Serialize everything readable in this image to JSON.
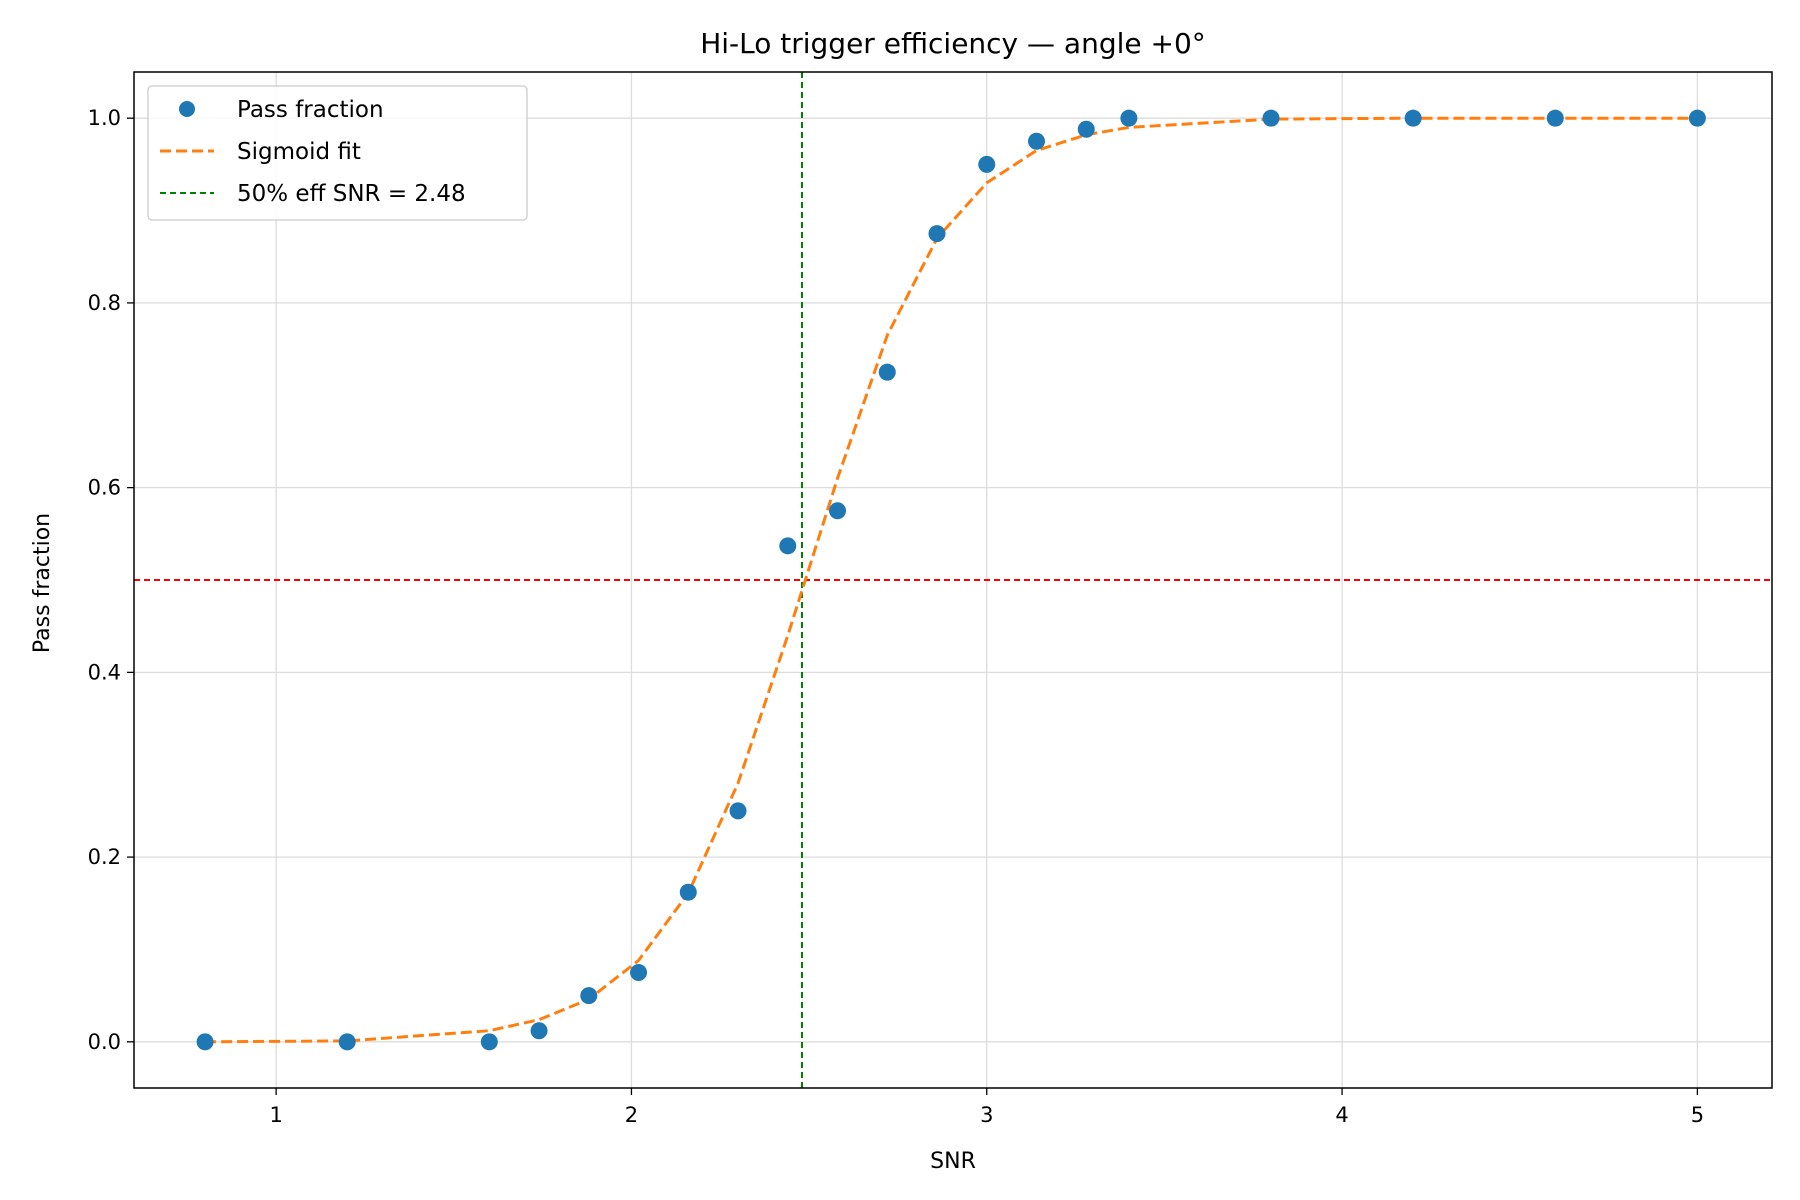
{
  "chart_data": {
    "type": "scatter",
    "title": "Hi-Lo trigger efficiency — angle +0°",
    "xlabel": "SNR",
    "ylabel": "Pass fraction",
    "xlim": [
      0.6,
      5.21
    ],
    "ylim": [
      -0.05,
      1.05
    ],
    "xticks": [
      1,
      2,
      3,
      4,
      5
    ],
    "xtick_labels": [
      "1",
      "2",
      "3",
      "4",
      "5"
    ],
    "yticks": [
      0.0,
      0.2,
      0.4,
      0.6,
      0.8,
      1.0
    ],
    "ytick_labels": [
      "0.0",
      "0.2",
      "0.4",
      "0.6",
      "0.8",
      "1.0"
    ],
    "grid": true,
    "legend_position": "upper-left",
    "series": [
      {
        "name": "Pass fraction",
        "kind": "points",
        "color": "#1f77b4",
        "x": [
          0.8,
          1.2,
          1.6,
          1.74,
          1.88,
          2.02,
          2.16,
          2.3,
          2.44,
          2.58,
          2.72,
          2.86,
          3.0,
          3.14,
          3.28,
          3.4,
          3.8,
          4.2,
          4.6,
          5.0
        ],
        "y": [
          0.0,
          0.0,
          0.0,
          0.012,
          0.05,
          0.075,
          0.162,
          0.25,
          0.537,
          0.575,
          0.725,
          0.875,
          0.95,
          0.975,
          0.988,
          1.0,
          1.0,
          1.0,
          1.0,
          1.0
        ]
      },
      {
        "name": "Sigmoid fit",
        "kind": "dashed-line",
        "color": "#ff7f0e",
        "x": [
          0.8,
          1.2,
          1.6,
          1.74,
          1.88,
          2.02,
          2.16,
          2.3,
          2.44,
          2.58,
          2.72,
          2.86,
          3.0,
          3.14,
          3.28,
          3.4,
          3.8,
          4.2,
          4.6,
          5.0
        ],
        "y": [
          0.0,
          0.001,
          0.012,
          0.024,
          0.046,
          0.088,
          0.161,
          0.28,
          0.44,
          0.61,
          0.765,
          0.87,
          0.93,
          0.965,
          0.982,
          0.99,
          0.999,
          1.0,
          1.0,
          1.0
        ]
      }
    ],
    "reference_lines": [
      {
        "name": "50% eff SNR = 2.48",
        "orientation": "vertical",
        "value": 2.48,
        "color": "#008000",
        "in_legend": true
      },
      {
        "name": "",
        "orientation": "horizontal",
        "value": 0.5,
        "color": "#ff0000",
        "in_legend": false
      }
    ]
  }
}
